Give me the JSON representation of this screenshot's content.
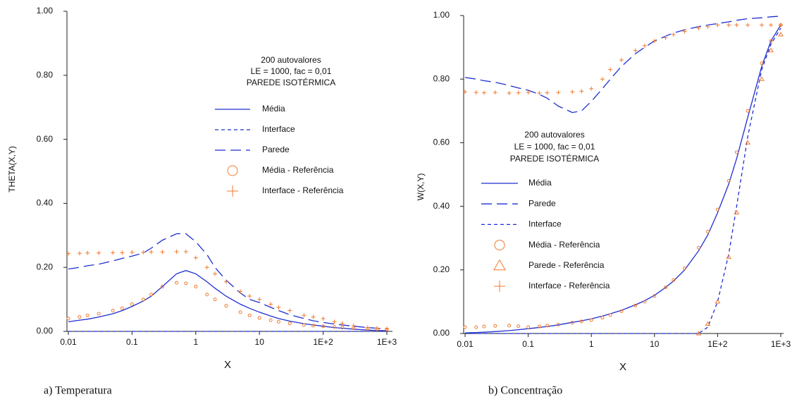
{
  "chart_data": [
    {
      "type": "line",
      "log_x": true,
      "caption": "a) Temperatura",
      "xlabel": "X",
      "ylabel": "THETA(X,Y)",
      "annotation": [
        "200 autovalores",
        "LE = 1000, fac = 0,01",
        "PAREDE ISOTÉRMICA"
      ],
      "xlim": [
        0.01,
        1000
      ],
      "xticks": [
        0.01,
        0.1,
        1,
        10,
        {
          "value": 100,
          "label": "1E+2"
        },
        {
          "value": 1000,
          "label": "1E+3"
        }
      ],
      "ylim": [
        0,
        1
      ],
      "yticks": [
        {
          "value": 0,
          "label": "0.00"
        },
        {
          "value": 0.2,
          "label": "0.20"
        },
        {
          "value": 0.4,
          "label": "0.40"
        },
        {
          "value": 0.6,
          "label": "0.60"
        },
        {
          "value": 0.8,
          "label": "0.80"
        },
        {
          "value": 1,
          "label": "1.00"
        }
      ],
      "x": [
        0.01,
        0.015,
        0.02,
        0.03,
        0.05,
        0.07,
        0.1,
        0.15,
        0.2,
        0.3,
        0.5,
        0.7,
        1,
        1.5,
        2,
        3,
        5,
        7,
        10,
        15,
        20,
        30,
        50,
        70,
        100,
        150,
        200,
        300,
        500,
        700,
        1000
      ],
      "series": [
        {
          "name": "Média",
          "color": "#1f2fd0",
          "style": "solid",
          "values": [
            0.03,
            0.035,
            0.038,
            0.045,
            0.055,
            0.065,
            0.078,
            0.095,
            0.11,
            0.14,
            0.18,
            0.19,
            0.18,
            0.155,
            0.135,
            0.11,
            0.085,
            0.072,
            0.06,
            0.048,
            0.04,
            0.032,
            0.024,
            0.02,
            0.016,
            0.012,
            0.01,
            0.007,
            0.004,
            0.003,
            0.002
          ]
        },
        {
          "name": "Interface",
          "color": "#1f2fd0",
          "style": "dash",
          "values": [
            0,
            0,
            0,
            0,
            0,
            0,
            0,
            0,
            0,
            0,
            0,
            0,
            0,
            0,
            0,
            0,
            0,
            0,
            0,
            0,
            0,
            0,
            0,
            0,
            0,
            0,
            0,
            0,
            0,
            0,
            0
          ]
        },
        {
          "name": "Parede",
          "color": "#1f2fd0",
          "style": "longdash",
          "values": [
            0.195,
            0.2,
            0.205,
            0.21,
            0.22,
            0.228,
            0.235,
            0.245,
            0.26,
            0.285,
            0.305,
            0.305,
            0.28,
            0.24,
            0.2,
            0.16,
            0.12,
            0.1,
            0.09,
            0.075,
            0.065,
            0.052,
            0.04,
            0.033,
            0.028,
            0.023,
            0.02,
            0.016,
            0.012,
            0.01,
            0.008
          ]
        },
        {
          "name": "Média - Referência",
          "color": "#f07a30",
          "style": "circle",
          "values": [
            0.04,
            0.045,
            0.05,
            0.055,
            0.065,
            0.072,
            0.085,
            0.1,
            0.115,
            0.14,
            0.152,
            0.15,
            0.14,
            0.115,
            0.1,
            0.08,
            0.06,
            0.05,
            0.042,
            0.035,
            0.03,
            0.025,
            0.02,
            0.018,
            0.016,
            0.014,
            0.012,
            0.01,
            0.008,
            0.007,
            0.006
          ]
        },
        {
          "name": "Interface - Referência",
          "color": "#f07a30",
          "style": "plus",
          "values": [
            0.243,
            0.244,
            0.245,
            0.245,
            0.246,
            0.246,
            0.247,
            0.247,
            0.248,
            0.248,
            0.249,
            0.249,
            0.23,
            0.2,
            0.18,
            0.155,
            0.125,
            0.11,
            0.1,
            0.085,
            0.075,
            0.065,
            0.05,
            0.045,
            0.04,
            0.03,
            0.025,
            0.018,
            0.012,
            0.01,
            0.008
          ]
        }
      ]
    },
    {
      "type": "line",
      "log_x": true,
      "caption": "b) Concentração",
      "xlabel": "X",
      "ylabel": "W(X,Y)",
      "annotation": [
        "200 autovalores",
        "LE = 1000, fac = 0,01",
        "PAREDE ISOTÉRMICA"
      ],
      "xlim": [
        0.01,
        1000
      ],
      "xticks": [
        0.01,
        0.1,
        1,
        10,
        {
          "value": 100,
          "label": "1E+2"
        },
        {
          "value": 1000,
          "label": "1E+3"
        }
      ],
      "ylim": [
        0,
        1
      ],
      "yticks": [
        {
          "value": 0,
          "label": "0.00"
        },
        {
          "value": 0.2,
          "label": "0.20"
        },
        {
          "value": 0.4,
          "label": "0.40"
        },
        {
          "value": 0.6,
          "label": "0.60"
        },
        {
          "value": 0.8,
          "label": "0.80"
        },
        {
          "value": 1,
          "label": "1.00"
        }
      ],
      "x": [
        0.01,
        0.015,
        0.02,
        0.03,
        0.05,
        0.07,
        0.1,
        0.15,
        0.2,
        0.3,
        0.5,
        0.7,
        1,
        1.5,
        2,
        3,
        5,
        7,
        10,
        15,
        20,
        30,
        50,
        70,
        100,
        150,
        200,
        300,
        500,
        700,
        1000
      ],
      "series": [
        {
          "name": "Média",
          "color": "#1f2fd0",
          "style": "solid",
          "values": [
            0.002,
            0.003,
            0.004,
            0.006,
            0.009,
            0.012,
            0.015,
            0.019,
            0.022,
            0.027,
            0.035,
            0.04,
            0.046,
            0.055,
            0.062,
            0.073,
            0.09,
            0.103,
            0.12,
            0.145,
            0.165,
            0.2,
            0.26,
            0.31,
            0.38,
            0.47,
            0.55,
            0.68,
            0.84,
            0.92,
            0.97
          ]
        },
        {
          "name": "Parede",
          "color": "#1f2fd0",
          "style": "longdash",
          "values": [
            0.805,
            0.8,
            0.795,
            0.79,
            0.78,
            0.772,
            0.765,
            0.752,
            0.74,
            0.715,
            0.695,
            0.7,
            0.73,
            0.77,
            0.8,
            0.84,
            0.88,
            0.9,
            0.92,
            0.935,
            0.945,
            0.955,
            0.965,
            0.97,
            0.975,
            0.98,
            0.985,
            0.99,
            0.993,
            0.996,
            0.998
          ]
        },
        {
          "name": "Interface",
          "color": "#1f2fd0",
          "style": "dash",
          "values": [
            0,
            0,
            0,
            0,
            0,
            0,
            0,
            0,
            0,
            0,
            0,
            0,
            0,
            0,
            0,
            0,
            0,
            0,
            0,
            0,
            0,
            0,
            0,
            0.02,
            0.1,
            0.25,
            0.4,
            0.62,
            0.83,
            0.91,
            0.96
          ]
        },
        {
          "name": "Média - Referência",
          "color": "#f07a30",
          "style": "circle",
          "values": [
            0.02,
            0.02,
            0.022,
            0.024,
            0.025,
            0.023,
            0.02,
            0.022,
            0.025,
            0.028,
            0.034,
            0.038,
            0.042,
            0.05,
            0.058,
            0.07,
            0.088,
            0.1,
            0.118,
            0.145,
            0.168,
            0.205,
            0.27,
            0.32,
            0.39,
            0.48,
            0.57,
            0.7,
            0.85,
            0.92,
            0.97
          ]
        },
        {
          "name": "Parede - Referência",
          "color": "#f07a30",
          "style": "triangle",
          "values": [
            null,
            null,
            null,
            null,
            null,
            null,
            null,
            null,
            null,
            null,
            null,
            null,
            null,
            null,
            null,
            null,
            null,
            null,
            null,
            null,
            null,
            null,
            0,
            0.03,
            0.1,
            0.24,
            0.38,
            0.6,
            0.8,
            0.89,
            0.94
          ]
        },
        {
          "name": "Interface - Referência",
          "color": "#f07a30",
          "style": "plus",
          "values": [
            0.76,
            0.758,
            0.757,
            0.758,
            0.756,
            0.757,
            0.758,
            0.756,
            0.757,
            0.758,
            0.76,
            0.762,
            0.77,
            0.8,
            0.83,
            0.86,
            0.89,
            0.905,
            0.92,
            0.93,
            0.94,
            0.95,
            0.96,
            0.965,
            0.97,
            0.97,
            0.97,
            0.97,
            0.97,
            0.97,
            0.97
          ]
        }
      ]
    }
  ]
}
